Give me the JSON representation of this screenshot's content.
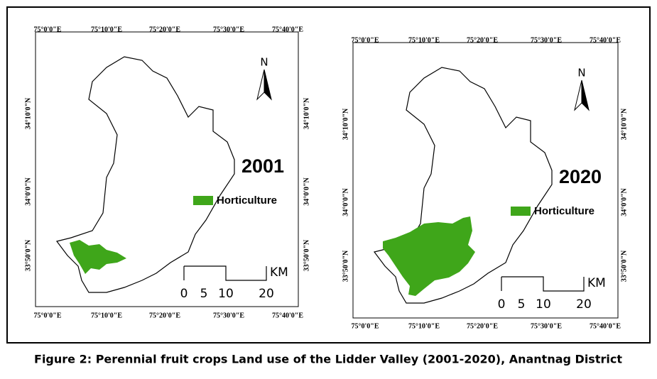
{
  "maps": [
    {
      "year": "2001",
      "legend": "Horticulture",
      "north": "N",
      "scale_unit": "KM",
      "scale_labels": [
        0,
        5,
        10,
        20
      ],
      "top_labels": [
        "75°0'0\"E",
        "75°10'0\"E",
        "75°20'0\"E",
        "75°30'0\"E",
        "75°40'0\"E"
      ],
      "bottom_labels": [
        "75°0'0\"E",
        "75°10'0\"E",
        "75°20'0\"E",
        "75°30'0\"E",
        "75°40'0\"E"
      ],
      "left_labels": [
        "34°10'0\"N",
        "34°0'0\"N",
        "33°50'0\"N"
      ],
      "right_labels": [
        "34°10'0\"N",
        "34°0'0\"N",
        "33°50'0\"N"
      ]
    },
    {
      "year": "2020",
      "legend": "Horticulture",
      "north": "N",
      "scale_unit": "KM",
      "scale_labels": [
        0,
        5,
        10,
        20
      ],
      "top_labels": [
        "75°0'0\"E",
        "75°10'0\"E",
        "75°20'0\"E",
        "75°30'0\"E",
        "75°40'0\"E"
      ],
      "bottom_labels": [
        "75°0'0\"E",
        "75°10'0\"E",
        "75°20'0\"E",
        "75°30'0\"E",
        "75°40'0\"E"
      ],
      "left_labels": [
        "34°10'0\"N",
        "34°0'0\"N",
        "33°50'0\"N"
      ],
      "right_labels": [
        "34°10'0\"N",
        "34°0'0\"N",
        "33°50'0\"N"
      ]
    }
  ],
  "caption": "Figure 2: Perennial fruit crops Land use of the Lidder Valley (2001-2020), Anantnag District"
}
